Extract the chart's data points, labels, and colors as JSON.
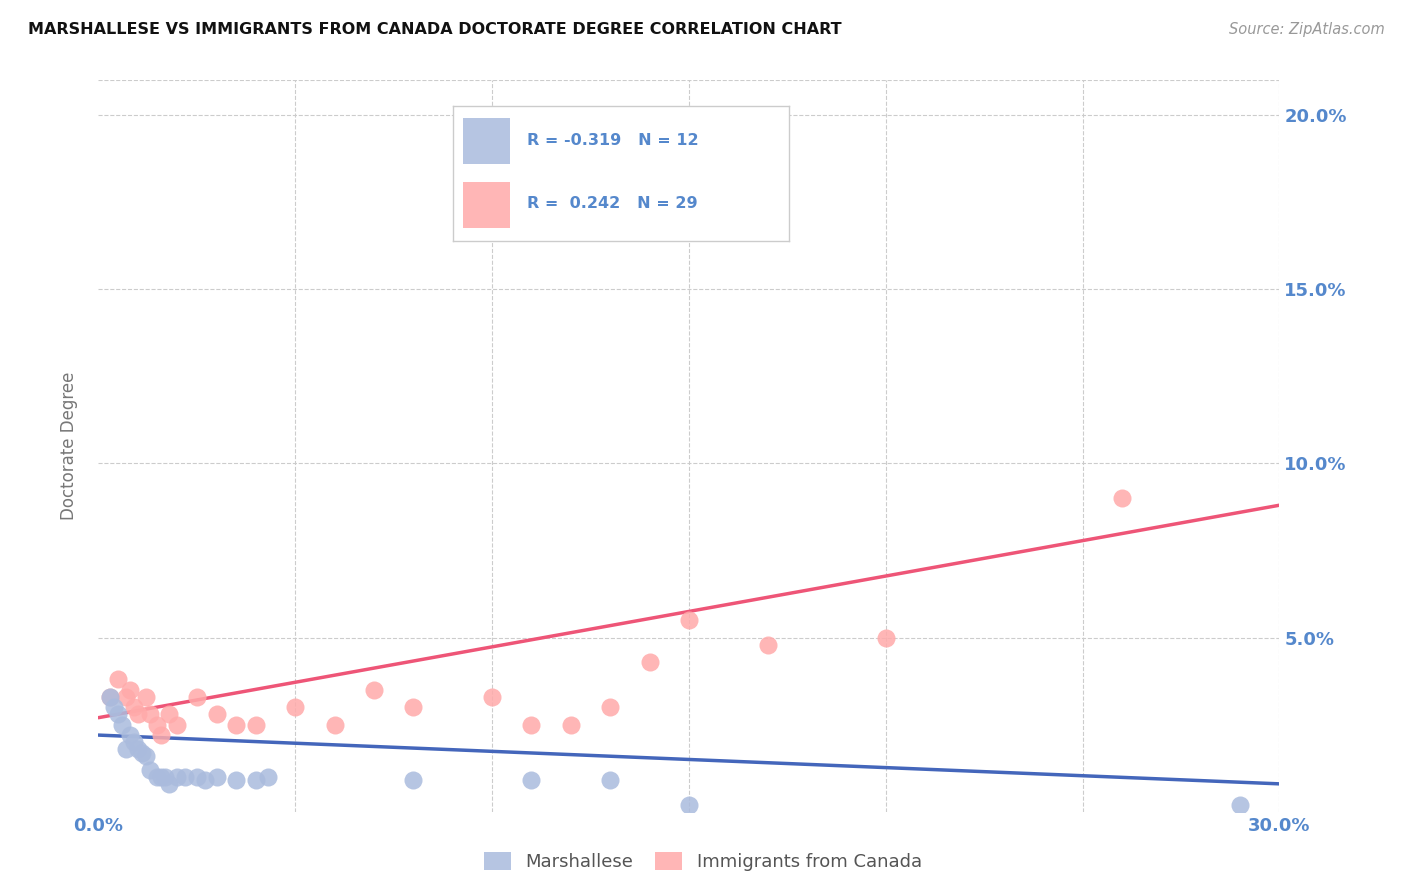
{
  "title": "MARSHALLESE VS IMMIGRANTS FROM CANADA DOCTORATE DEGREE CORRELATION CHART",
  "source": "Source: ZipAtlas.com",
  "ylabel": "Doctorate Degree",
  "xlim": [
    0.0,
    0.3
  ],
  "ylim": [
    0.0,
    0.21
  ],
  "xticks": [
    0.0,
    0.05,
    0.1,
    0.15,
    0.2,
    0.25,
    0.3
  ],
  "yticks": [
    0.0,
    0.05,
    0.1,
    0.15,
    0.2
  ],
  "background_color": "#ffffff",
  "grid_color": "#cccccc",
  "blue_color": "#aabbdd",
  "pink_color": "#ffaaaa",
  "blue_fill_color": "#aabbee",
  "pink_fill_color": "#ffbbcc",
  "blue_line_color": "#4466bb",
  "pink_line_color": "#ee5577",
  "label_color": "#5588cc",
  "marshallese_points": [
    [
      0.003,
      0.033
    ],
    [
      0.004,
      0.03
    ],
    [
      0.005,
      0.028
    ],
    [
      0.006,
      0.025
    ],
    [
      0.007,
      0.018
    ],
    [
      0.008,
      0.022
    ],
    [
      0.009,
      0.02
    ],
    [
      0.01,
      0.018
    ],
    [
      0.011,
      0.017
    ],
    [
      0.012,
      0.016
    ],
    [
      0.013,
      0.012
    ],
    [
      0.015,
      0.01
    ],
    [
      0.016,
      0.01
    ],
    [
      0.017,
      0.01
    ],
    [
      0.018,
      0.008
    ],
    [
      0.02,
      0.01
    ],
    [
      0.022,
      0.01
    ],
    [
      0.025,
      0.01
    ],
    [
      0.027,
      0.009
    ],
    [
      0.03,
      0.01
    ],
    [
      0.035,
      0.009
    ],
    [
      0.04,
      0.009
    ],
    [
      0.043,
      0.01
    ],
    [
      0.08,
      0.009
    ],
    [
      0.11,
      0.009
    ],
    [
      0.13,
      0.009
    ],
    [
      0.15,
      0.002
    ],
    [
      0.29,
      0.002
    ]
  ],
  "canada_points": [
    [
      0.003,
      0.033
    ],
    [
      0.005,
      0.038
    ],
    [
      0.007,
      0.033
    ],
    [
      0.008,
      0.035
    ],
    [
      0.009,
      0.03
    ],
    [
      0.01,
      0.028
    ],
    [
      0.012,
      0.033
    ],
    [
      0.013,
      0.028
    ],
    [
      0.015,
      0.025
    ],
    [
      0.016,
      0.022
    ],
    [
      0.018,
      0.028
    ],
    [
      0.02,
      0.025
    ],
    [
      0.025,
      0.033
    ],
    [
      0.03,
      0.028
    ],
    [
      0.035,
      0.025
    ],
    [
      0.04,
      0.025
    ],
    [
      0.05,
      0.03
    ],
    [
      0.06,
      0.025
    ],
    [
      0.07,
      0.035
    ],
    [
      0.08,
      0.03
    ],
    [
      0.1,
      0.033
    ],
    [
      0.11,
      0.025
    ],
    [
      0.12,
      0.025
    ],
    [
      0.13,
      0.03
    ],
    [
      0.14,
      0.043
    ],
    [
      0.15,
      0.055
    ],
    [
      0.17,
      0.048
    ],
    [
      0.2,
      0.05
    ],
    [
      0.26,
      0.09
    ]
  ],
  "blue_line_x": [
    0.0,
    0.3
  ],
  "blue_line_y": [
    0.022,
    0.008
  ],
  "pink_line_x": [
    0.0,
    0.3
  ],
  "pink_line_y": [
    0.027,
    0.088
  ]
}
